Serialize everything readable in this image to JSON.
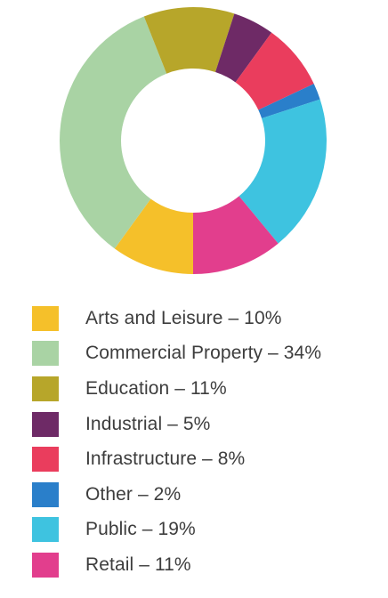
{
  "chart_data": {
    "type": "pie",
    "donut": true,
    "title": "",
    "legend_position": "bottom",
    "slices": [
      {
        "name": "Arts and Leisure",
        "value": 10,
        "color": "#f5c02a",
        "label": "Arts and Leisure – 10%"
      },
      {
        "name": "Commercial Property",
        "value": 34,
        "color": "#a9d3a4",
        "label": "Commercial Property – 34%"
      },
      {
        "name": "Education",
        "value": 11,
        "color": "#b7a62a",
        "label": "Education – 11%"
      },
      {
        "name": "Industrial",
        "value": 5,
        "color": "#6e2a66",
        "label": "Industrial – 5%"
      },
      {
        "name": "Infrastructure",
        "value": 8,
        "color": "#ea3d5d",
        "label": "Infrastructure – 8%"
      },
      {
        "name": "Other",
        "value": 2,
        "color": "#2a7fca",
        "label": "Other – 2%"
      },
      {
        "name": "Public",
        "value": 19,
        "color": "#3ec3e0",
        "label": "Public – 19%"
      },
      {
        "name": "Retail",
        "value": 11,
        "color": "#e23e8d",
        "label": "Retail – 11%"
      }
    ]
  }
}
